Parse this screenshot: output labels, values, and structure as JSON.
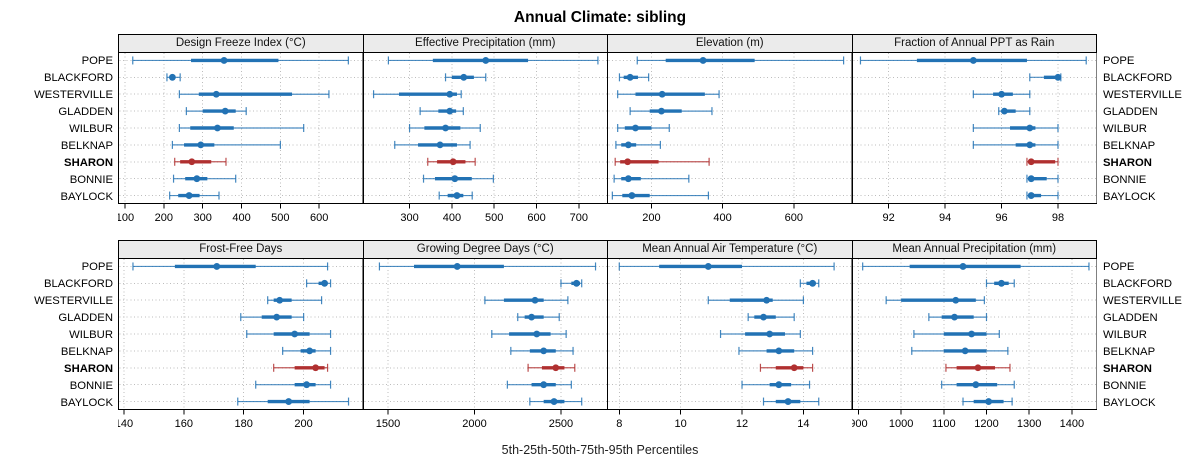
{
  "title": "Annual Climate: sibling",
  "caption": "5th-25th-50th-75th-95th Percentiles",
  "stations": [
    "POPE",
    "BLACKFORD",
    "WESTERVILLE",
    "GLADDEN",
    "WILBUR",
    "BELKNAP",
    "SHARON",
    "BONNIE",
    "BAYLOCK"
  ],
  "highlight_station": "SHARON",
  "colors": {
    "series_normal": "#2272b4",
    "series_highlight": "#b03030",
    "strip_bg": "#ebebeb",
    "grid": "#bdbdbd",
    "border": "#000000",
    "background": "#ffffff"
  },
  "chart_data": {
    "type": "dotplot-percentiles",
    "percentile_labels": [
      "5th",
      "25th",
      "50th",
      "75th",
      "95th"
    ],
    "legend_note": "thin line = 5th-95th, thick bar = 25th-75th, dot = 50th percentile",
    "panels": [
      {
        "row": 0,
        "title": "Design Freeze Index (°C)",
        "xlim": [
          82,
          714
        ],
        "ticks": [
          100,
          200,
          300,
          400,
          500,
          600
        ],
        "values": {
          "POPE": [
            120,
            270,
            355,
            495,
            675
          ],
          "BLACKFORD": [
            208,
            215,
            222,
            230,
            242
          ],
          "WESTERVILLE": [
            240,
            290,
            335,
            530,
            625
          ],
          "GLADDEN": [
            258,
            300,
            358,
            385,
            412
          ],
          "WILBUR": [
            240,
            268,
            338,
            380,
            560
          ],
          "BELKNAP": [
            222,
            252,
            295,
            330,
            500
          ],
          "SHARON": [
            228,
            242,
            272,
            322,
            360
          ],
          "BONNIE": [
            225,
            255,
            285,
            312,
            385
          ],
          "BAYLOCK": [
            215,
            237,
            265,
            292,
            342
          ]
        }
      },
      {
        "row": 0,
        "title": "Effective Precipitation (mm)",
        "xlim": [
          190,
          770
        ],
        "ticks": [
          300,
          400,
          500,
          600,
          700
        ],
        "values": {
          "POPE": [
            250,
            355,
            480,
            580,
            745
          ],
          "BLACKFORD": [
            385,
            400,
            428,
            452,
            480
          ],
          "WESTERVILLE": [
            215,
            275,
            395,
            412,
            422
          ],
          "GLADDEN": [
            325,
            368,
            395,
            410,
            427
          ],
          "WILBUR": [
            300,
            335,
            385,
            420,
            467
          ],
          "BELKNAP": [
            265,
            320,
            372,
            412,
            443
          ],
          "SHARON": [
            343,
            365,
            403,
            432,
            455
          ],
          "BONNIE": [
            333,
            360,
            407,
            447,
            498
          ],
          "BAYLOCK": [
            370,
            390,
            412,
            427,
            448
          ]
        }
      },
      {
        "row": 0,
        "title": "Elevation (m)",
        "xlim": [
          75,
          765
        ],
        "ticks": [
          200,
          400,
          600
        ],
        "values": {
          "POPE": [
            160,
            240,
            345,
            490,
            740
          ],
          "BLACKFORD": [
            110,
            122,
            140,
            162,
            192
          ],
          "WESTERVILLE": [
            105,
            155,
            230,
            350,
            390
          ],
          "GLADDEN": [
            140,
            195,
            228,
            285,
            370
          ],
          "WILBUR": [
            105,
            125,
            155,
            200,
            250
          ],
          "BELKNAP": [
            100,
            115,
            135,
            157,
            225
          ],
          "SHARON": [
            98,
            112,
            133,
            220,
            362
          ],
          "BONNIE": [
            95,
            115,
            135,
            170,
            305
          ],
          "BAYLOCK": [
            90,
            118,
            145,
            195,
            360
          ]
        }
      },
      {
        "row": 0,
        "title": "Fraction of Annual PPT as Rain",
        "xlim": [
          90.7,
          99.4
        ],
        "ticks": [
          92,
          94,
          96,
          98
        ],
        "values": {
          "POPE": [
            91,
            93,
            95,
            96.9,
            99
          ],
          "BLACKFORD": [
            97,
            97.5,
            98,
            98,
            98.1
          ],
          "WESTERVILLE": [
            95,
            95.7,
            96,
            96.4,
            97
          ],
          "GLADDEN": [
            95.9,
            96,
            96.1,
            96.5,
            97
          ],
          "WILBUR": [
            95,
            96.3,
            97,
            97.2,
            98
          ],
          "BELKNAP": [
            95,
            96.5,
            97,
            97.2,
            98
          ],
          "SHARON": [
            96.9,
            97,
            97.05,
            97.9,
            98
          ],
          "BONNIE": [
            96.9,
            97,
            97.05,
            97.6,
            98
          ],
          "BAYLOCK": [
            96.9,
            97,
            97.05,
            97.4,
            98
          ]
        }
      },
      {
        "row": 1,
        "title": "Frost-Free Days",
        "xlim": [
          138,
          220
        ],
        "ticks": [
          140,
          160,
          180,
          200
        ],
        "values": {
          "POPE": [
            143,
            157,
            171,
            184,
            208
          ],
          "BLACKFORD": [
            201,
            205,
            207,
            208,
            209
          ],
          "WESTERVILLE": [
            188,
            190,
            192,
            196,
            206
          ],
          "GLADDEN": [
            179,
            186,
            191,
            196,
            200
          ],
          "WILBUR": [
            181,
            190,
            197,
            202,
            209
          ],
          "BELKNAP": [
            193,
            199,
            202,
            204,
            209
          ],
          "SHARON": [
            190,
            197,
            204,
            207,
            208
          ],
          "BONNIE": [
            184,
            197,
            201,
            204,
            209
          ],
          "BAYLOCK": [
            178,
            188,
            195,
            202,
            215
          ]
        }
      },
      {
        "row": 1,
        "title": "Growing Degree Days (°C)",
        "xlim": [
          1355,
          2775
        ],
        "ticks": [
          1500,
          2000,
          2500
        ],
        "values": {
          "POPE": [
            1450,
            1650,
            1900,
            2170,
            2700
          ],
          "BLACKFORD": [
            2500,
            2560,
            2590,
            2610,
            2620
          ],
          "WESTERVILLE": [
            2060,
            2170,
            2350,
            2400,
            2540
          ],
          "GLADDEN": [
            2250,
            2290,
            2330,
            2400,
            2490
          ],
          "WILBUR": [
            2100,
            2200,
            2360,
            2440,
            2530
          ],
          "BELKNAP": [
            2210,
            2320,
            2400,
            2470,
            2570
          ],
          "SHARON": [
            2310,
            2390,
            2470,
            2520,
            2580
          ],
          "BONNIE": [
            2190,
            2330,
            2400,
            2470,
            2560
          ],
          "BAYLOCK": [
            2320,
            2400,
            2460,
            2520,
            2620
          ]
        }
      },
      {
        "row": 1,
        "title": "Mean Annual Air Temperature (°C)",
        "xlim": [
          7.6,
          15.6
        ],
        "ticks": [
          8,
          10,
          12,
          14
        ],
        "values": {
          "POPE": [
            8,
            9.3,
            10.9,
            12,
            15
          ],
          "BLACKFORD": [
            13.9,
            14.1,
            14.3,
            14.4,
            14.5
          ],
          "WESTERVILLE": [
            10.9,
            11.6,
            12.8,
            13,
            14
          ],
          "GLADDEN": [
            12.2,
            12.4,
            12.7,
            13.1,
            13.7
          ],
          "WILBUR": [
            11.3,
            12.1,
            12.9,
            13.4,
            13.9
          ],
          "BELKNAP": [
            11.9,
            12.8,
            13.2,
            13.7,
            14.3
          ],
          "SHARON": [
            12.6,
            13.1,
            13.7,
            14,
            14.3
          ],
          "BONNIE": [
            12,
            12.9,
            13.2,
            13.6,
            14.2
          ],
          "BAYLOCK": [
            12.7,
            13.1,
            13.5,
            13.9,
            14.5
          ]
        }
      },
      {
        "row": 1,
        "title": "Mean Annual Precipitation (mm)",
        "xlim": [
          885,
          1460
        ],
        "ticks": [
          900,
          1000,
          1100,
          1200,
          1300,
          1400
        ],
        "values": {
          "POPE": [
            910,
            1020,
            1145,
            1280,
            1440
          ],
          "BLACKFORD": [
            1200,
            1218,
            1235,
            1252,
            1265
          ],
          "WESTERVILLE": [
            965,
            1000,
            1128,
            1175,
            1195
          ],
          "GLADDEN": [
            1065,
            1095,
            1125,
            1170,
            1200
          ],
          "WILBUR": [
            1030,
            1100,
            1165,
            1200,
            1230
          ],
          "BELKNAP": [
            1025,
            1100,
            1150,
            1200,
            1250
          ],
          "SHARON": [
            1105,
            1130,
            1180,
            1220,
            1255
          ],
          "BONNIE": [
            1095,
            1130,
            1175,
            1225,
            1265
          ],
          "BAYLOCK": [
            1145,
            1170,
            1205,
            1240,
            1260
          ]
        }
      }
    ]
  }
}
